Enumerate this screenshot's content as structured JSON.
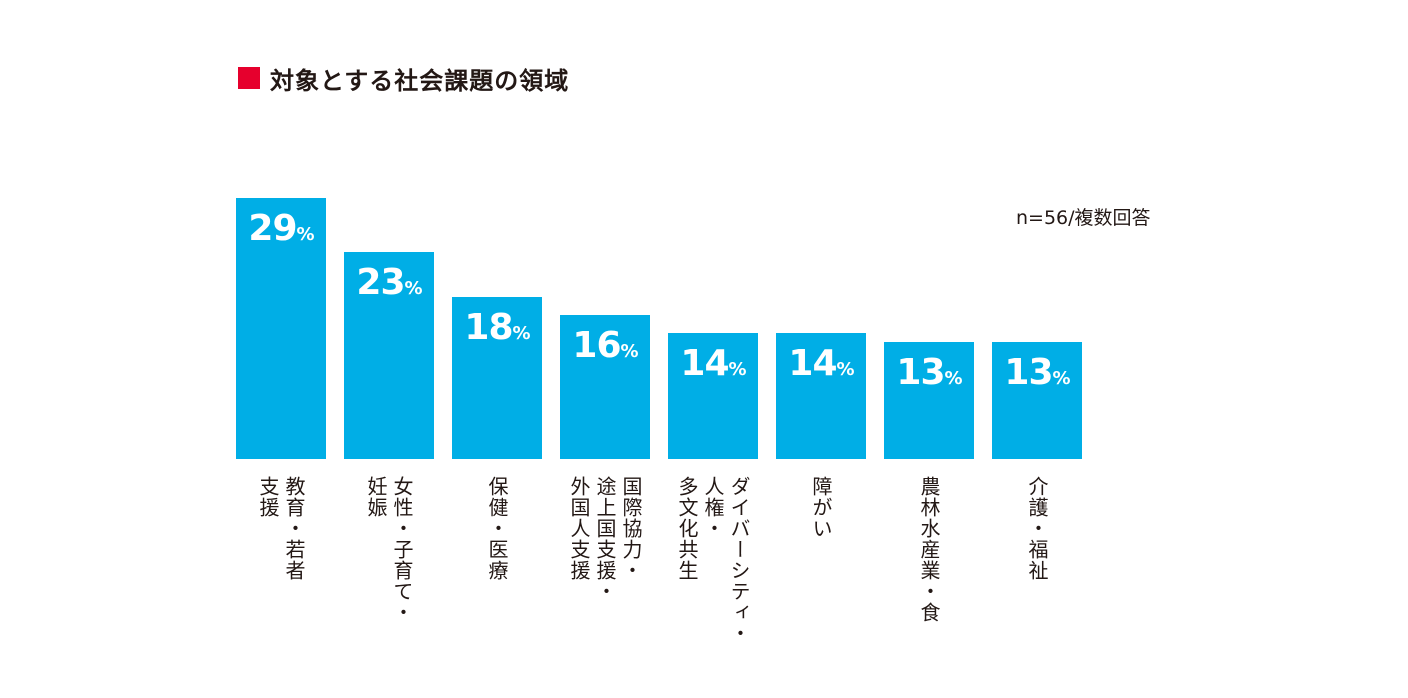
{
  "title": "対象とする社会課題の領域",
  "note": "n=56/複数回答",
  "colors": {
    "bar": "#00aee6",
    "marker": "#e6002d",
    "text": "#231815"
  },
  "chart_data": {
    "type": "bar",
    "title": "対象とする社会課題の領域",
    "unit": "%",
    "categories": [
      "教育・若者支援",
      "女性・子育て・妊娠",
      "保健・医療",
      "国際協力・途上国支援・外国人支援",
      "ダイバーシティ・人権・多文化共生",
      "障がい",
      "農林水産業・食",
      "介護・福祉"
    ],
    "category_lines": [
      [
        "教育・若者",
        "支援"
      ],
      [
        "女性・子育て・",
        "妊娠"
      ],
      [
        "保健・医療"
      ],
      [
        "国際協力・",
        "途上国支援・",
        "外国人支援"
      ],
      [
        "ダイバーシティ・",
        "人権・",
        "多文化共生"
      ],
      [
        "障がい"
      ],
      [
        "農林水産業・食"
      ],
      [
        "介護・福祉"
      ]
    ],
    "values": [
      29,
      23,
      18,
      16,
      14,
      14,
      13,
      13
    ],
    "value_labels": [
      "29",
      "23",
      "18",
      "16",
      "14",
      "14",
      "13",
      "13"
    ],
    "pct_symbol": "%",
    "ylim": [
      0,
      29
    ]
  }
}
